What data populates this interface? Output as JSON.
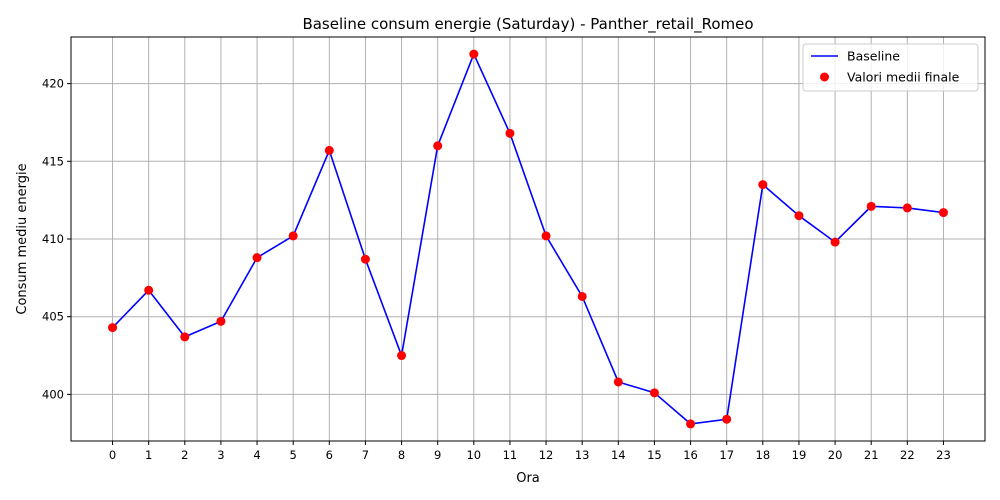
{
  "chart_data": {
    "type": "line",
    "title": "Baseline consum energie (Saturday) - Panther_retail_Romeo",
    "xlabel": "Ora",
    "ylabel": "Consum mediu energie",
    "x": [
      0,
      1,
      2,
      3,
      4,
      5,
      6,
      7,
      8,
      9,
      10,
      11,
      12,
      13,
      14,
      15,
      16,
      17,
      18,
      19,
      20,
      21,
      22,
      23
    ],
    "xticks": [
      "0",
      "1",
      "2",
      "3",
      "4",
      "5",
      "6",
      "7",
      "8",
      "9",
      "10",
      "11",
      "12",
      "13",
      "14",
      "15",
      "16",
      "17",
      "18",
      "19",
      "20",
      "21",
      "22",
      "23"
    ],
    "yticks": [
      400,
      405,
      410,
      415,
      420
    ],
    "ylim": [
      397,
      423
    ],
    "xlim": [
      -1.15,
      24.15
    ],
    "grid": true,
    "legend_position": "top-right",
    "series": [
      {
        "name": "Baseline",
        "kind": "line",
        "color": "#0000ff",
        "values": [
          404.3,
          406.7,
          403.7,
          404.7,
          408.8,
          410.2,
          415.7,
          408.7,
          402.5,
          416.0,
          421.9,
          416.8,
          410.2,
          406.3,
          400.8,
          400.1,
          398.1,
          398.4,
          413.5,
          411.5,
          409.8,
          412.1,
          412.0,
          411.7
        ]
      },
      {
        "name": "Valori medii finale",
        "kind": "scatter",
        "color": "#ff0000",
        "values": [
          404.3,
          406.7,
          403.7,
          404.7,
          408.8,
          410.2,
          415.7,
          408.7,
          402.5,
          416.0,
          421.9,
          416.8,
          410.2,
          406.3,
          400.8,
          400.1,
          398.1,
          398.4,
          413.5,
          411.5,
          409.8,
          412.1,
          412.0,
          411.7
        ]
      }
    ]
  }
}
